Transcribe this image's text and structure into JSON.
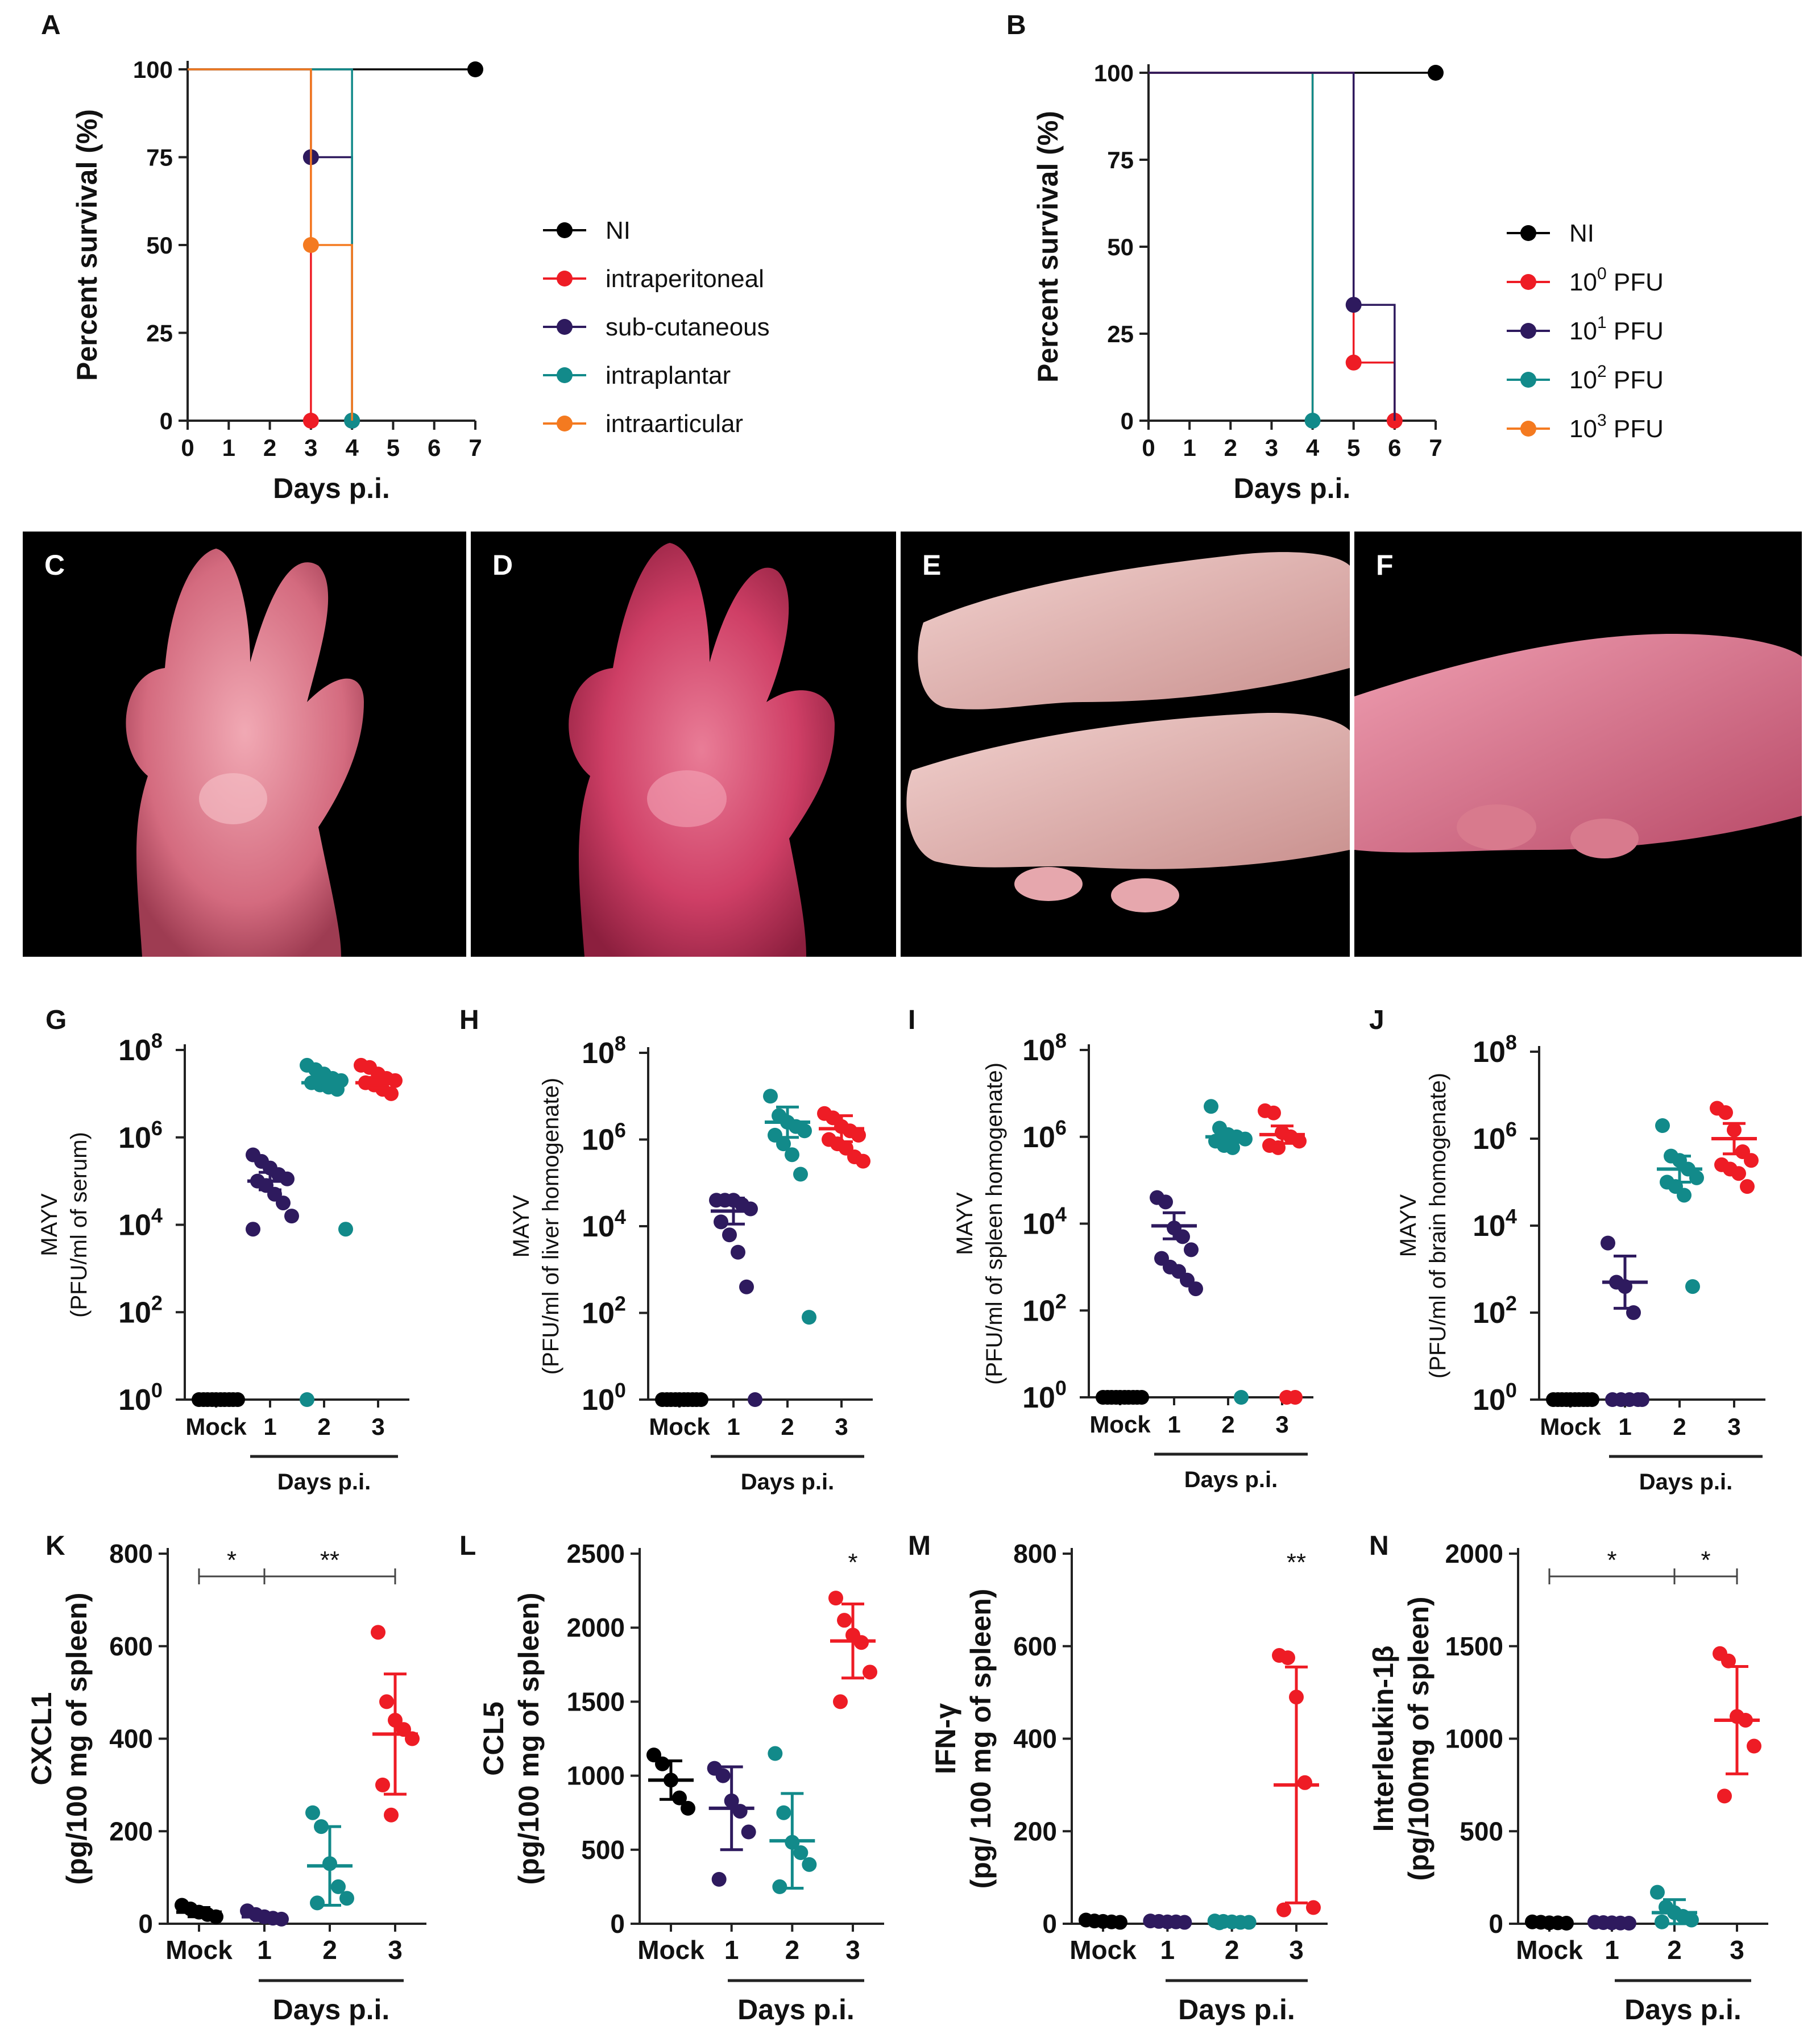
{
  "colors": {
    "NI": "#000000",
    "red": "#ee1c25",
    "purple": "#2e1a5e",
    "teal": "#128a8a",
    "orange": "#f47a20",
    "axis": "#222222",
    "photo_bg": "#000000"
  },
  "photos": [
    {
      "label": "C"
    },
    {
      "label": "D"
    },
    {
      "label": "E"
    },
    {
      "label": "F"
    }
  ],
  "chart_data": [
    {
      "panel": "A",
      "type": "line",
      "subtype": "kaplan-meier",
      "xlabel": "Days p.i.",
      "ylabel": "Percent survival (%)",
      "xlim": [
        0,
        7
      ],
      "ylim": [
        0,
        100
      ],
      "xticks": [
        "0",
        "1",
        "2",
        "3",
        "4",
        "5",
        "6",
        "7"
      ],
      "yticks": [
        "0",
        "25",
        "50",
        "75",
        "100"
      ],
      "legend": [
        {
          "name": "NI",
          "color": "#000000"
        },
        {
          "name": "intraperitoneal",
          "color": "#ee1c25"
        },
        {
          "name": "sub-cutaneous",
          "color": "#2e1a5e"
        },
        {
          "name": "intraplantar",
          "color": "#128a8a"
        },
        {
          "name": "intraarticular",
          "color": "#f47a20"
        }
      ],
      "series": [
        {
          "name": "NI",
          "steps": [
            [
              0,
              100
            ],
            [
              7,
              100
            ]
          ],
          "markers": [
            [
              7,
              100
            ]
          ],
          "color": "#000000"
        },
        {
          "name": "intraperitoneal",
          "steps": [
            [
              0,
              100
            ],
            [
              3,
              100
            ],
            [
              3,
              0
            ]
          ],
          "markers": [
            [
              3,
              0
            ]
          ],
          "color": "#ee1c25"
        },
        {
          "name": "sub-cutaneous",
          "steps": [
            [
              0,
              100
            ],
            [
              3,
              100
            ],
            [
              3,
              75
            ],
            [
              4,
              75
            ],
            [
              4,
              0
            ]
          ],
          "markers": [
            [
              3,
              75
            ],
            [
              4,
              0
            ]
          ],
          "color": "#2e1a5e"
        },
        {
          "name": "intraplantar",
          "steps": [
            [
              0,
              100
            ],
            [
              4,
              100
            ],
            [
              4,
              0
            ]
          ],
          "markers": [
            [
              4,
              0
            ]
          ],
          "color": "#128a8a"
        },
        {
          "name": "intraarticular",
          "steps": [
            [
              0,
              100
            ],
            [
              3,
              100
            ],
            [
              3,
              50
            ],
            [
              4,
              50
            ],
            [
              4,
              0
            ]
          ],
          "markers": [
            [
              3,
              50
            ]
          ],
          "color": "#f47a20"
        }
      ]
    },
    {
      "panel": "B",
      "type": "line",
      "subtype": "kaplan-meier",
      "xlabel": "Days p.i.",
      "ylabel": "Percent survival (%)",
      "xlim": [
        0,
        7
      ],
      "ylim": [
        0,
        100
      ],
      "xticks": [
        "0",
        "1",
        "2",
        "3",
        "4",
        "5",
        "6",
        "7"
      ],
      "yticks": [
        "0",
        "25",
        "50",
        "75",
        "100"
      ],
      "legend": [
        {
          "name": "NI",
          "color": "#000000"
        },
        {
          "name": "10",
          "sup": "0",
          "unit": " PFU",
          "color": "#ee1c25"
        },
        {
          "name": "10",
          "sup": "1",
          "unit": " PFU",
          "color": "#2e1a5e"
        },
        {
          "name": "10",
          "sup": "2",
          "unit": " PFU",
          "color": "#128a8a"
        },
        {
          "name": "10",
          "sup": "3",
          "unit": " PFU",
          "color": "#f47a20"
        }
      ],
      "series": [
        {
          "name": "NI",
          "steps": [
            [
              0,
              100
            ],
            [
              7,
              100
            ]
          ],
          "markers": [
            [
              7,
              100
            ]
          ],
          "color": "#000000"
        },
        {
          "name": "10^3 PFU",
          "steps": [
            [
              0,
              100
            ],
            [
              4,
              100
            ],
            [
              4,
              0
            ]
          ],
          "markers": [],
          "color": "#f47a20"
        },
        {
          "name": "10^2 PFU",
          "steps": [
            [
              0,
              100
            ],
            [
              4,
              100
            ],
            [
              4,
              0
            ]
          ],
          "markers": [
            [
              4,
              0
            ]
          ],
          "color": "#128a8a"
        },
        {
          "name": "10^0 PFU",
          "steps": [
            [
              0,
              100
            ],
            [
              5,
              100
            ],
            [
              5,
              16.7
            ],
            [
              6,
              16.7
            ],
            [
              6,
              0
            ]
          ],
          "markers": [
            [
              5,
              16.7
            ],
            [
              6,
              0
            ]
          ],
          "color": "#ee1c25"
        },
        {
          "name": "10^1 PFU",
          "steps": [
            [
              0,
              100
            ],
            [
              5,
              100
            ],
            [
              5,
              33.3
            ],
            [
              6,
              33.3
            ],
            [
              6,
              0
            ]
          ],
          "markers": [
            [
              5,
              33.3
            ]
          ],
          "color": "#2e1a5e"
        }
      ]
    },
    {
      "panel": "G",
      "type": "scatter",
      "scale": "log",
      "ylabel_lines": [
        "MAYV",
        "(PFU/ml of serum)"
      ],
      "categories": [
        "Mock",
        "1",
        "2",
        "3"
      ],
      "xlabel": "Days p.i.",
      "yticks_exp": [
        0,
        2,
        4,
        6,
        8
      ],
      "ylim_exp": [
        0,
        8
      ],
      "groups": [
        {
          "cat": "Mock",
          "color": "#000000",
          "points": [
            0,
            0,
            0,
            0,
            0,
            0,
            0,
            0,
            0,
            0
          ],
          "mean": 0,
          "sd": 0
        },
        {
          "cat": "1",
          "color": "#2e1a5e",
          "points": [
            5.6,
            5.45,
            5.3,
            5.15,
            5.05,
            5.0,
            4.9,
            4.7,
            4.5,
            4.2,
            3.9
          ],
          "mean": 5.0,
          "sd": 0.2
        },
        {
          "cat": "2",
          "color": "#128a8a",
          "points": [
            7.65,
            7.55,
            7.45,
            7.35,
            7.3,
            7.25,
            7.2,
            7.15,
            7.1,
            3.9,
            0
          ],
          "mean": 7.25,
          "sd": 0.12
        },
        {
          "cat": "3",
          "color": "#ee1c25",
          "points": [
            7.65,
            7.6,
            7.45,
            7.35,
            7.3,
            7.25,
            7.2,
            7.1,
            7.0
          ],
          "mean": 7.25,
          "sd": 0.12
        }
      ]
    },
    {
      "panel": "H",
      "type": "scatter",
      "scale": "log",
      "ylabel_lines": [
        "MAYV",
        "(PFU/ml of liver homogenate)"
      ],
      "categories": [
        "Mock",
        "1",
        "2",
        "3"
      ],
      "xlabel": "Days p.i.",
      "yticks_exp": [
        0,
        2,
        4,
        6,
        8
      ],
      "ylim_exp": [
        0,
        8
      ],
      "groups": [
        {
          "cat": "Mock",
          "color": "#000000",
          "points": [
            0,
            0,
            0,
            0,
            0,
            0,
            0,
            0,
            0,
            0
          ],
          "mean": 0,
          "sd": 0
        },
        {
          "cat": "1",
          "color": "#2e1a5e",
          "points": [
            4.6,
            4.6,
            4.6,
            4.5,
            4.4,
            4.1,
            3.8,
            3.4,
            2.6,
            0
          ],
          "mean": 4.35,
          "sd": 0.3
        },
        {
          "cat": "2",
          "color": "#128a8a",
          "points": [
            7.0,
            6.55,
            6.4,
            6.3,
            6.2,
            6.1,
            5.9,
            5.65,
            5.2,
            1.9
          ],
          "mean": 6.4,
          "sd": 0.35
        },
        {
          "cat": "3",
          "color": "#ee1c25",
          "points": [
            6.6,
            6.5,
            6.3,
            6.2,
            6.1,
            6.0,
            5.9,
            5.8,
            5.6,
            5.5
          ],
          "mean": 6.25,
          "sd": 0.3
        }
      ]
    },
    {
      "panel": "I",
      "type": "scatter",
      "scale": "log",
      "ylabel_lines": [
        "MAYV",
        "(PFU/ml of spleen homogenate)"
      ],
      "categories": [
        "Mock",
        "1",
        "2",
        "3"
      ],
      "xlabel": "Days p.i.",
      "yticks_exp": [
        0,
        2,
        4,
        6,
        8
      ],
      "ylim_exp": [
        0,
        8
      ],
      "groups": [
        {
          "cat": "Mock",
          "color": "#000000",
          "points": [
            0,
            0,
            0,
            0,
            0,
            0,
            0,
            0,
            0,
            0
          ],
          "mean": 0,
          "sd": 0
        },
        {
          "cat": "1",
          "color": "#2e1a5e",
          "points": [
            4.6,
            4.5,
            3.9,
            3.7,
            3.4,
            3.2,
            3.0,
            2.9,
            2.7,
            2.5
          ],
          "mean": 3.95,
          "sd": 0.3
        },
        {
          "cat": "2",
          "color": "#128a8a",
          "points": [
            6.7,
            6.2,
            6.05,
            6.0,
            5.95,
            5.9,
            5.8,
            5.75,
            0
          ],
          "mean": 6.0,
          "sd": 0.1
        },
        {
          "cat": "3",
          "color": "#ee1c25",
          "points": [
            6.6,
            6.55,
            6.1,
            6.0,
            5.9,
            5.8,
            5.75,
            0,
            0
          ],
          "mean": 6.05,
          "sd": 0.2
        }
      ]
    },
    {
      "panel": "J",
      "type": "scatter",
      "scale": "log",
      "ylabel_lines": [
        "MAYV",
        "(PFU/ml of brain homogenate)"
      ],
      "categories": [
        "Mock",
        "1",
        "2",
        "3"
      ],
      "xlabel": "Days p.i.",
      "yticks_exp": [
        0,
        2,
        4,
        6,
        8
      ],
      "ylim_exp": [
        0,
        8
      ],
      "groups": [
        {
          "cat": "Mock",
          "color": "#000000",
          "points": [
            0,
            0,
            0,
            0,
            0,
            0,
            0,
            0,
            0,
            0
          ],
          "mean": 0,
          "sd": 0
        },
        {
          "cat": "1",
          "color": "#2e1a5e",
          "points": [
            3.6,
            2.7,
            2.6,
            2.0,
            0,
            0,
            0,
            0,
            0
          ],
          "mean": 2.7,
          "sd": 0.6
        },
        {
          "cat": "2",
          "color": "#128a8a",
          "points": [
            6.3,
            5.6,
            5.5,
            5.3,
            5.1,
            5.0,
            4.9,
            4.7,
            2.6
          ],
          "mean": 5.3,
          "sd": 0.3
        },
        {
          "cat": "3",
          "color": "#ee1c25",
          "points": [
            6.7,
            6.6,
            6.2,
            5.7,
            5.5,
            5.4,
            5.3,
            5.2,
            4.9
          ],
          "mean": 6.0,
          "sd": 0.35
        }
      ]
    },
    {
      "panel": "K",
      "type": "scatter",
      "scale": "linear",
      "ylabel_lines": [
        "CXCL1",
        "(pg/100 mg of spleen)"
      ],
      "categories": [
        "Mock",
        "1",
        "2",
        "3"
      ],
      "xlabel": "Days p.i.",
      "yticks": [
        0,
        200,
        400,
        600,
        800
      ],
      "ylim": [
        0,
        800
      ],
      "significance": [
        {
          "from": 0,
          "to": 1,
          "label": "*"
        },
        {
          "from": 1,
          "to": 3,
          "label": "**"
        }
      ],
      "groups": [
        {
          "cat": "Mock",
          "color": "#000000",
          "points": [
            40,
            32,
            25,
            20,
            15
          ],
          "mean": 25,
          "sd": 10
        },
        {
          "cat": "1",
          "color": "#2e1a5e",
          "points": [
            28,
            20,
            15,
            12,
            10
          ],
          "mean": 15,
          "sd": 8
        },
        {
          "cat": "2",
          "color": "#128a8a",
          "points": [
            240,
            210,
            130,
            80,
            55,
            45
          ],
          "mean": 125,
          "sd": 85
        },
        {
          "cat": "3",
          "color": "#ee1c25",
          "points": [
            630,
            480,
            440,
            420,
            400,
            300,
            235
          ],
          "mean": 410,
          "sd": 130
        }
      ]
    },
    {
      "panel": "L",
      "type": "scatter",
      "scale": "linear",
      "ylabel_lines": [
        "CCL5",
        "(pg/100 mg of spleen)"
      ],
      "categories": [
        "Mock",
        "1",
        "2",
        "3"
      ],
      "xlabel": "Days p.i.",
      "yticks": [
        0,
        500,
        1000,
        1500,
        2000,
        2500
      ],
      "ylim": [
        0,
        2500
      ],
      "significance": [
        {
          "cat": 3,
          "label": "*"
        }
      ],
      "groups": [
        {
          "cat": "Mock",
          "color": "#000000",
          "points": [
            1140,
            1080,
            970,
            850,
            780
          ],
          "mean": 970,
          "sd": 130
        },
        {
          "cat": "1",
          "color": "#2e1a5e",
          "points": [
            1050,
            1000,
            830,
            760,
            620,
            300
          ],
          "mean": 780,
          "sd": 280
        },
        {
          "cat": "2",
          "color": "#128a8a",
          "points": [
            1150,
            750,
            550,
            480,
            400,
            250
          ],
          "mean": 560,
          "sd": 320
        },
        {
          "cat": "3",
          "color": "#ee1c25",
          "points": [
            2200,
            2050,
            1950,
            1900,
            1700,
            1500
          ],
          "mean": 1910,
          "sd": 250
        }
      ]
    },
    {
      "panel": "M",
      "type": "scatter",
      "scale": "linear",
      "ylabel_lines": [
        "IFN-γ",
        "(pg/ 100 mg of spleen)"
      ],
      "categories": [
        "Mock",
        "1",
        "2",
        "3"
      ],
      "xlabel": "Days p.i.",
      "yticks": [
        0,
        200,
        400,
        600,
        800
      ],
      "ylim": [
        0,
        800
      ],
      "significance": [
        {
          "cat": 3,
          "label": "**"
        }
      ],
      "groups": [
        {
          "cat": "Mock",
          "color": "#000000",
          "points": [
            8,
            6,
            5,
            4,
            3
          ],
          "mean": 5,
          "sd": 2
        },
        {
          "cat": "1",
          "color": "#2e1a5e",
          "points": [
            6,
            5,
            4,
            4,
            3
          ],
          "mean": 4,
          "sd": 2
        },
        {
          "cat": "2",
          "color": "#128a8a",
          "points": [
            6,
            5,
            4,
            3,
            3,
            2
          ],
          "mean": 4,
          "sd": 2
        },
        {
          "cat": "3",
          "color": "#ee1c25",
          "points": [
            580,
            575,
            490,
            305,
            35,
            30
          ],
          "mean": 300,
          "sd": 255
        }
      ]
    },
    {
      "panel": "N",
      "type": "scatter",
      "scale": "linear",
      "ylabel_lines": [
        "Interleukin-1β",
        "(pg/100mg of spleen)"
      ],
      "categories": [
        "Mock",
        "1",
        "2",
        "3"
      ],
      "xlabel": "Days p.i.",
      "yticks": [
        0,
        500,
        1000,
        1500,
        2000
      ],
      "ylim": [
        0,
        2000
      ],
      "significance": [
        {
          "from": 0,
          "to": 2,
          "label": "*"
        },
        {
          "from": 2,
          "to": 3,
          "label": "*"
        }
      ],
      "groups": [
        {
          "cat": "Mock",
          "color": "#000000",
          "points": [
            10,
            8,
            5,
            5,
            3
          ],
          "mean": 5,
          "sd": 3
        },
        {
          "cat": "1",
          "color": "#2e1a5e",
          "points": [
            8,
            6,
            5,
            4,
            3
          ],
          "mean": 5,
          "sd": 3
        },
        {
          "cat": "2",
          "color": "#128a8a",
          "points": [
            170,
            90,
            60,
            40,
            20,
            10
          ],
          "mean": 60,
          "sd": 70
        },
        {
          "cat": "3",
          "color": "#ee1c25",
          "points": [
            1460,
            1420,
            1120,
            1100,
            960,
            690
          ],
          "mean": 1100,
          "sd": 290
        }
      ]
    }
  ]
}
